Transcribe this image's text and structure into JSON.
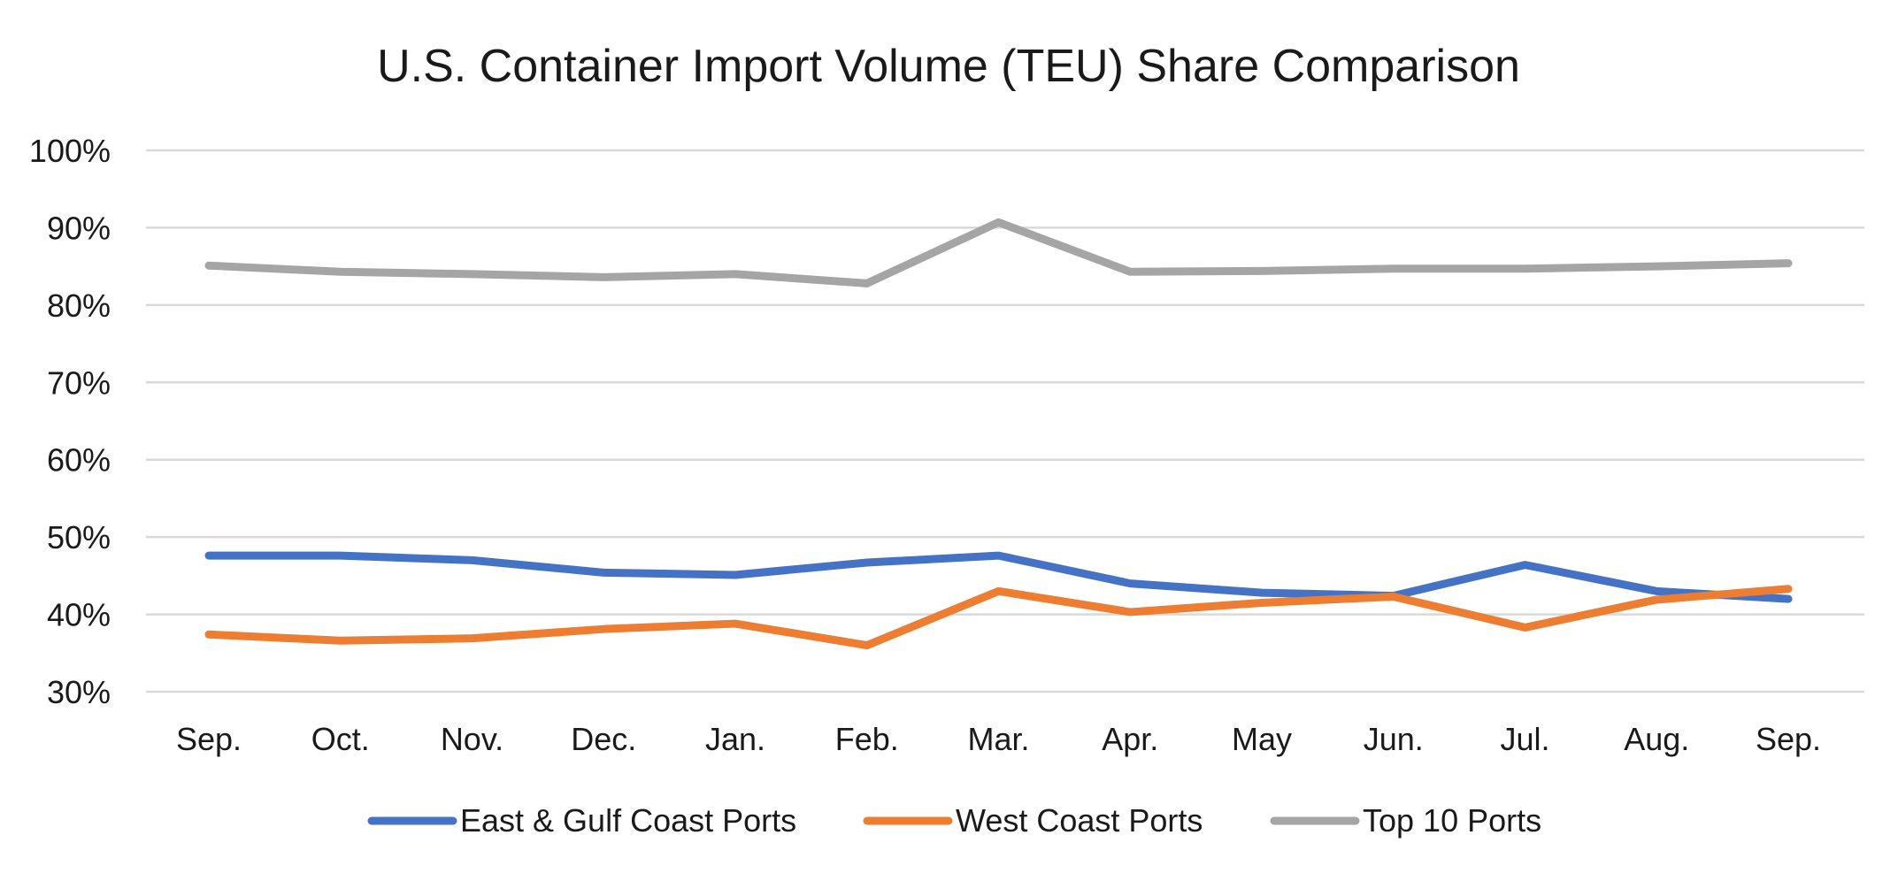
{
  "chart_data": {
    "type": "line",
    "title": "U.S. Container Import Volume (TEU) Share Comparison",
    "xlabel": "",
    "ylabel": "",
    "categories": [
      "Sep.",
      "Oct.",
      "Nov.",
      "Dec.",
      "Jan.",
      "Feb.",
      "Mar.",
      "Apr.",
      "May",
      "Jun.",
      "Jul.",
      "Aug.",
      "Sep."
    ],
    "ylim": [
      30,
      100
    ],
    "yticks": [
      30,
      40,
      50,
      60,
      70,
      80,
      90,
      100
    ],
    "ytick_labels": [
      "30%",
      "40%",
      "50%",
      "60%",
      "70%",
      "80%",
      "90%",
      "100%"
    ],
    "grid": true,
    "legend_position": "bottom",
    "series": [
      {
        "name": "East & Gulf Coast Ports",
        "color": "#4472C4",
        "values": [
          47.6,
          47.6,
          47.0,
          45.4,
          45.1,
          46.7,
          47.6,
          44.0,
          42.8,
          42.4,
          46.4,
          43.0,
          42.0
        ]
      },
      {
        "name": "West Coast Ports",
        "color": "#ED7D31",
        "values": [
          37.4,
          36.6,
          36.9,
          38.1,
          38.8,
          36.0,
          43.0,
          40.3,
          41.5,
          42.3,
          38.3,
          41.9,
          43.3
        ]
      },
      {
        "name": "Top 10 Ports",
        "color": "#A5A5A5",
        "values": [
          85.1,
          84.3,
          84.0,
          83.6,
          84.0,
          82.8,
          90.7,
          84.3,
          84.4,
          84.7,
          84.7,
          85.0,
          85.4
        ]
      }
    ]
  }
}
